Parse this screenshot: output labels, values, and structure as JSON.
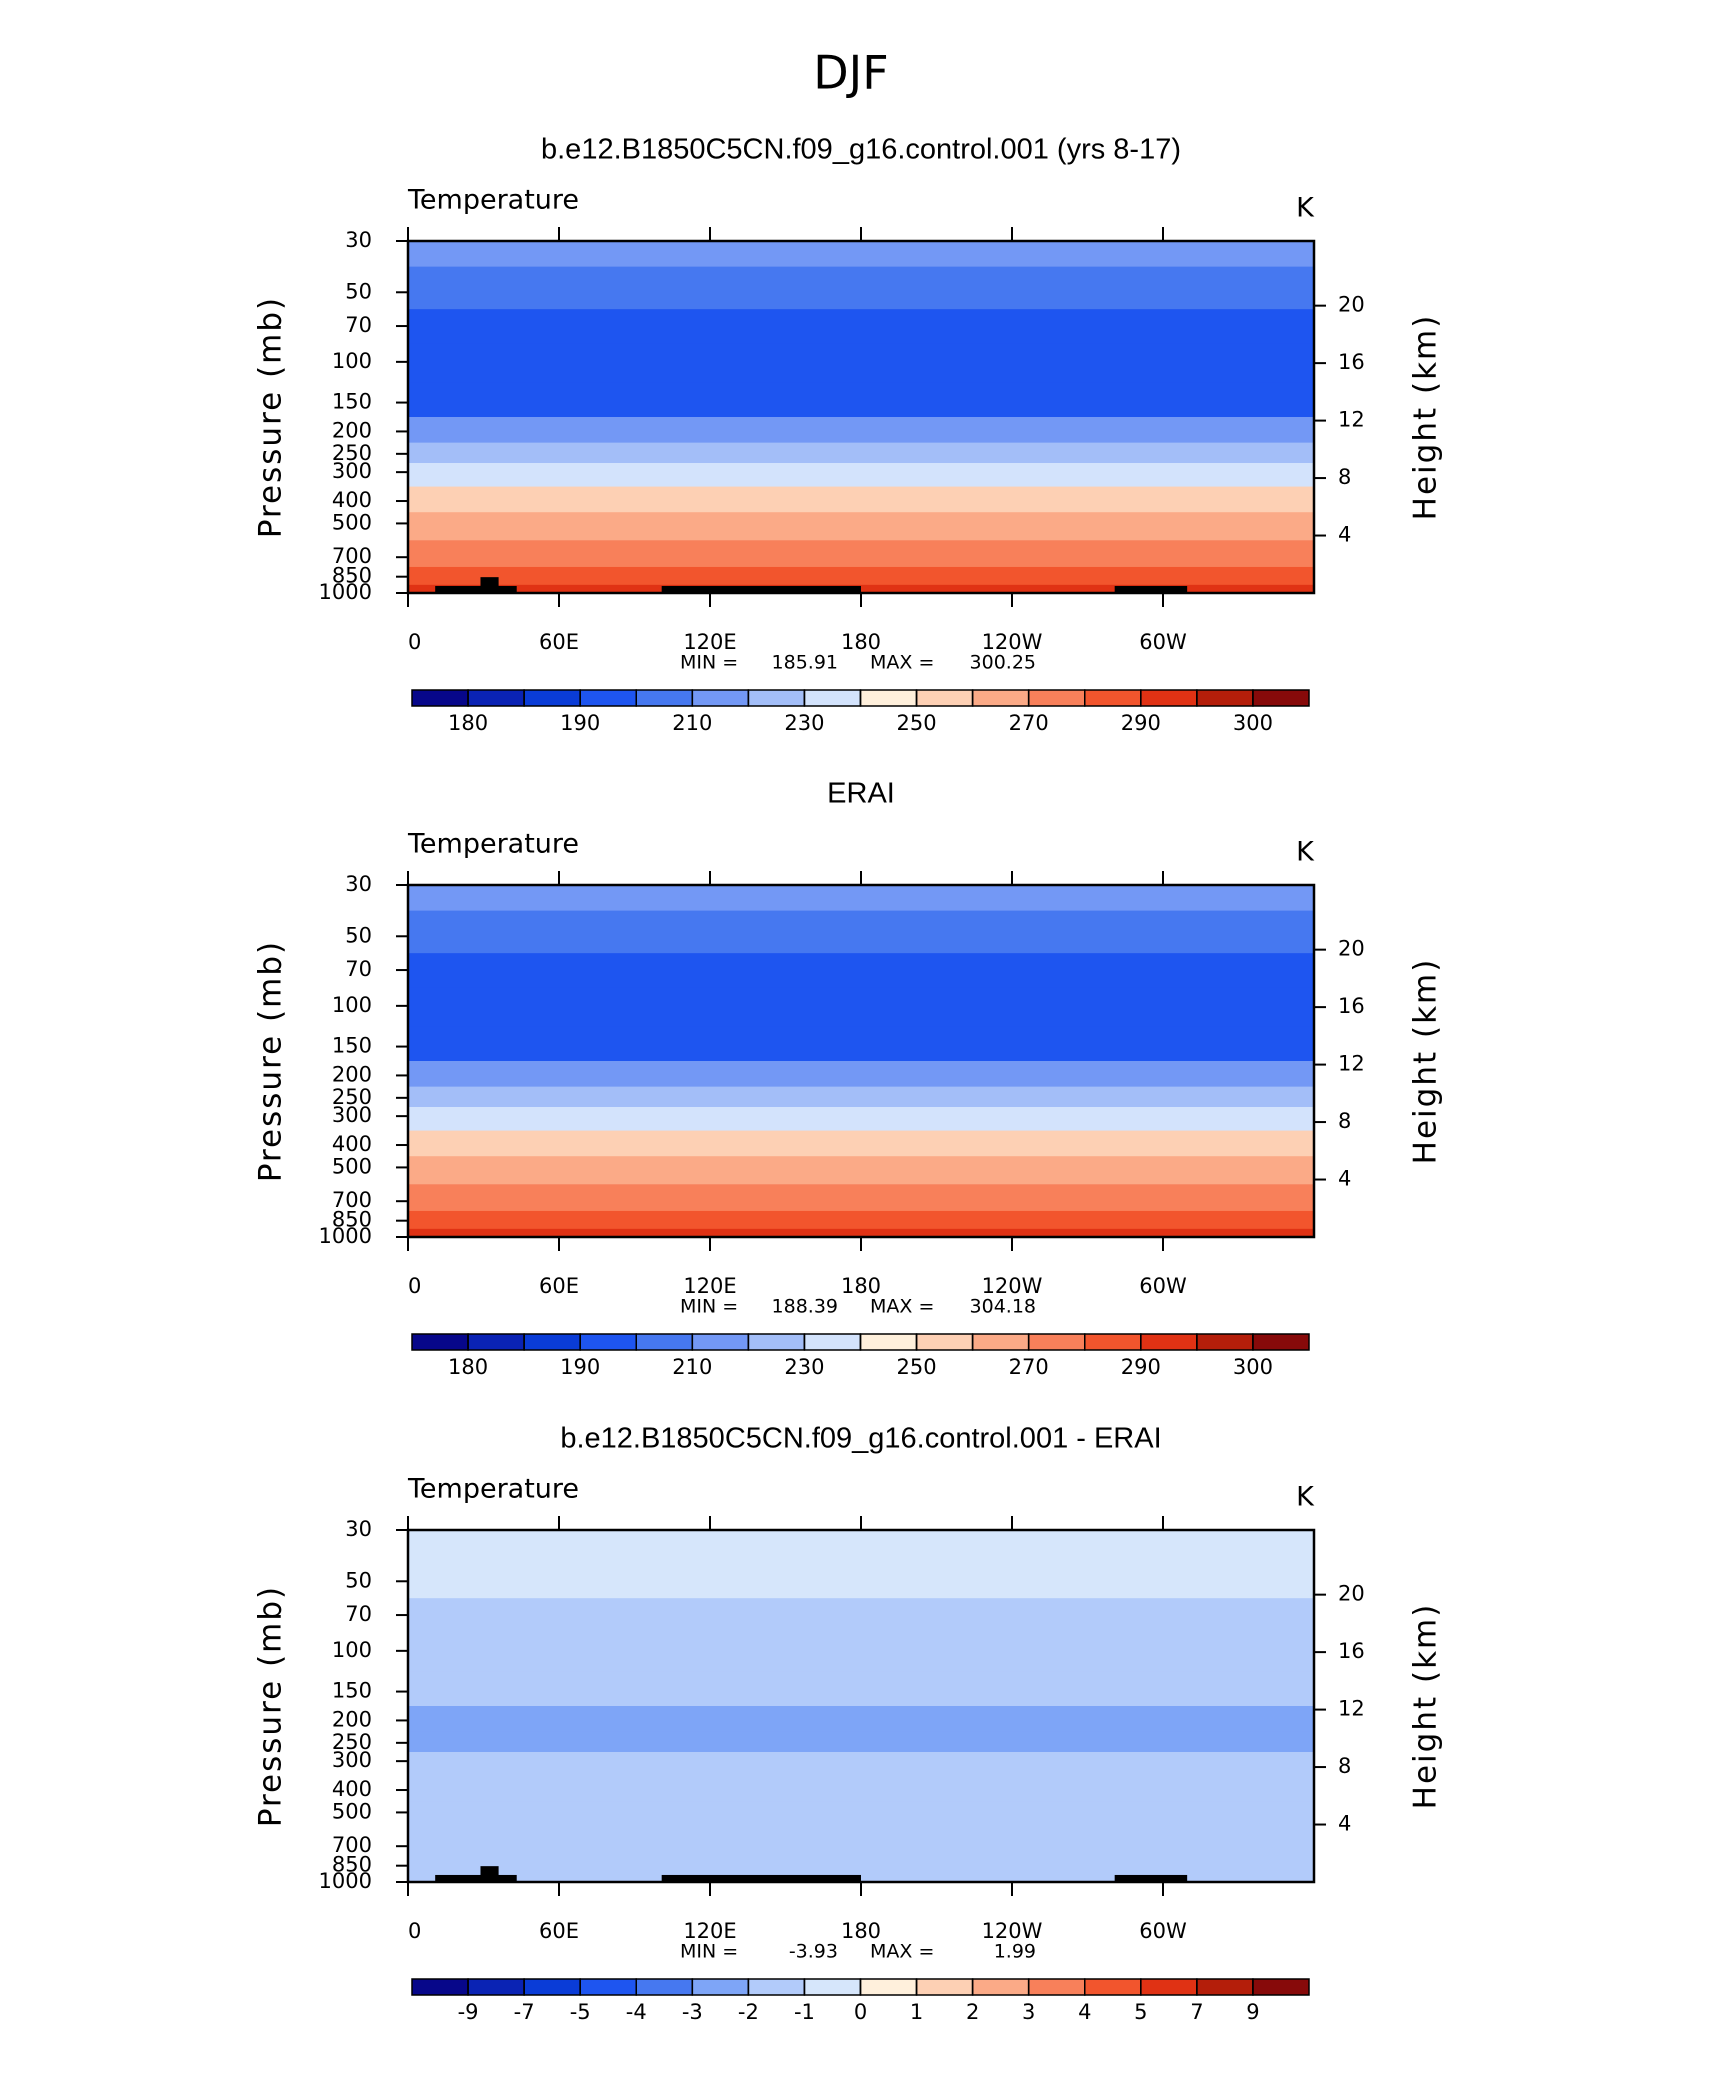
{
  "title": "DJF",
  "chart_data": [
    {
      "type": "contour",
      "title": "b.e12.B1850C5CN.f09_g16.control.001 (yrs 8-17)",
      "subtitle": "Temperature",
      "units": "K",
      "ylabel": "Pressure (mb)",
      "y2label": "Height (km)",
      "ylog": true,
      "ylim": [
        1000,
        30
      ],
      "yticks": [
        30,
        50,
        70,
        100,
        150,
        200,
        250,
        300,
        400,
        500,
        700,
        850,
        1000
      ],
      "y2lim": [
        0,
        24.5
      ],
      "y2ticks": [
        4,
        8,
        12,
        16,
        20
      ],
      "xlim": [
        0,
        360
      ],
      "xticks": [
        0,
        {
          "value": 60,
          "label": "60E"
        },
        {
          "value": 120,
          "label": "120E"
        },
        180,
        {
          "value": 240,
          "label": "120W"
        },
        {
          "value": 300,
          "label": "60W"
        }
      ],
      "min_label": "MIN =",
      "min": 185.91,
      "max_label": "MAX =",
      "max": 300.25,
      "profile": {
        "pressure": [
          30,
          50,
          70,
          100,
          150,
          200,
          250,
          300,
          400,
          500,
          700,
          850,
          1000
        ],
        "values": [
          215,
          205,
          195,
          192,
          196,
          212,
          222,
          235,
          252,
          262,
          275,
          284,
          292
        ]
      },
      "levels": [
        180,
        185,
        190,
        200,
        210,
        220,
        230,
        240,
        250,
        260,
        270,
        280,
        290,
        295,
        300
      ],
      "colorbar_ticks": [
        180,
        190,
        210,
        230,
        250,
        270,
        290,
        300
      ],
      "colors": [
        "#07078a",
        "#0a23b4",
        "#0a3cd7",
        "#1e55f0",
        "#4678f0",
        "#7398f5",
        "#a3bef8",
        "#d3e3fc",
        "#fff0dc",
        "#fdd0b4",
        "#fbaa87",
        "#f8805a",
        "#f2552d",
        "#e03214",
        "#b41e0a",
        "#870a0a"
      ]
    },
    {
      "type": "contour",
      "title": "ERAI",
      "subtitle": "Temperature",
      "units": "K",
      "ylabel": "Pressure (mb)",
      "y2label": "Height (km)",
      "ylog": true,
      "ylim": [
        1000,
        30
      ],
      "yticks": [
        30,
        50,
        70,
        100,
        150,
        200,
        250,
        300,
        400,
        500,
        700,
        850,
        1000
      ],
      "y2lim": [
        0,
        24.5
      ],
      "y2ticks": [
        4,
        8,
        12,
        16,
        20
      ],
      "xlim": [
        0,
        360
      ],
      "xticks": [
        0,
        {
          "value": 60,
          "label": "60E"
        },
        {
          "value": 120,
          "label": "120E"
        },
        180,
        {
          "value": 240,
          "label": "120W"
        },
        {
          "value": 300,
          "label": "60W"
        }
      ],
      "min_label": "MIN =",
      "min": 188.39,
      "max_label": "MAX =",
      "max": 304.18,
      "profile": {
        "pressure": [
          30,
          50,
          70,
          100,
          150,
          200,
          250,
          300,
          400,
          500,
          700,
          850,
          1000
        ],
        "values": [
          215,
          205,
          195,
          194,
          198,
          214,
          225,
          238,
          254,
          264,
          277,
          286,
          294
        ]
      },
      "levels": [
        180,
        185,
        190,
        200,
        210,
        220,
        230,
        240,
        250,
        260,
        270,
        280,
        290,
        295,
        300
      ],
      "colorbar_ticks": [
        180,
        190,
        210,
        230,
        250,
        270,
        290,
        300
      ],
      "colors": [
        "#07078a",
        "#0a23b4",
        "#0a3cd7",
        "#1e55f0",
        "#4678f0",
        "#7398f5",
        "#a3bef8",
        "#d3e3fc",
        "#fff0dc",
        "#fdd0b4",
        "#fbaa87",
        "#f8805a",
        "#f2552d",
        "#e03214",
        "#b41e0a",
        "#870a0a"
      ]
    },
    {
      "type": "contour",
      "title": "b.e12.B1850C5CN.f09_g16.control.001 - ERAI",
      "subtitle": "Temperature",
      "units": "K",
      "ylabel": "Pressure (mb)",
      "y2label": "Height (km)",
      "ylog": true,
      "ylim": [
        1000,
        30
      ],
      "yticks": [
        30,
        50,
        70,
        100,
        150,
        200,
        250,
        300,
        400,
        500,
        700,
        850,
        1000
      ],
      "y2lim": [
        0,
        24.5
      ],
      "y2ticks": [
        4,
        8,
        12,
        16,
        20
      ],
      "xlim": [
        0,
        360
      ],
      "xticks": [
        0,
        {
          "value": 60,
          "label": "60E"
        },
        {
          "value": 120,
          "label": "120E"
        },
        180,
        {
          "value": 240,
          "label": "120W"
        },
        {
          "value": 300,
          "label": "60W"
        }
      ],
      "min_label": "MIN =",
      "min": -3.93,
      "max_label": "MAX =",
      "max": 1.99,
      "profile": {
        "pressure": [
          30,
          50,
          70,
          100,
          150,
          200,
          250,
          300,
          400,
          500,
          700,
          850,
          1000
        ],
        "values": [
          -0.5,
          -0.8,
          -1.5,
          -1.3,
          -1.6,
          -2.2,
          -2.1,
          -1.6,
          -1.2,
          -1.3,
          -1.5,
          -1.4,
          -1.6
        ]
      },
      "levels": [
        -9,
        -7,
        -5,
        -4,
        -3,
        -2,
        -1,
        0,
        1,
        2,
        3,
        4,
        5,
        7,
        9
      ],
      "colorbar_ticks": [
        -9,
        -7,
        -5,
        -4,
        -3,
        -2,
        -1,
        0,
        1,
        2,
        3,
        4,
        5,
        7,
        9
      ],
      "colors": [
        "#07078a",
        "#0a23b4",
        "#0a3cd7",
        "#1e55f0",
        "#4678f0",
        "#7ea5f7",
        "#b2cbfa",
        "#d6e6fb",
        "#fff0dc",
        "#fdd0b4",
        "#fbaa87",
        "#f8805a",
        "#f2552d",
        "#e03214",
        "#b41e0a",
        "#870a0a"
      ]
    }
  ]
}
